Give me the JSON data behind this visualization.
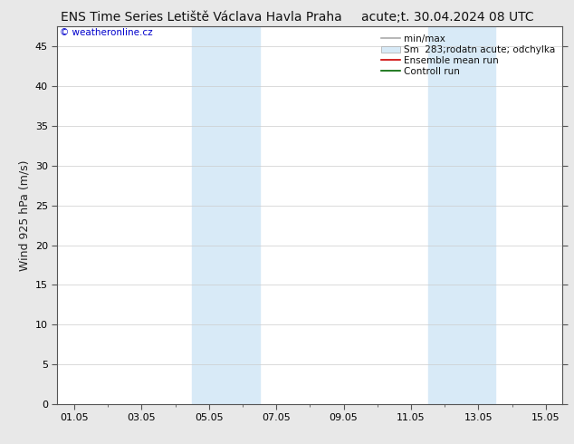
{
  "title_left": "ENS Time Series Letiště Václava Havla Praha",
  "title_right": "acute;t. 30.04.2024 08 UTC",
  "ylabel": "Wind 925 hPa (m/s)",
  "watermark": "© weatheronline.cz",
  "watermark_color": "#0000cc",
  "xtick_labels": [
    "01.05",
    "03.05",
    "05.05",
    "07.05",
    "09.05",
    "11.05",
    "13.05",
    "15.05"
  ],
  "xtick_positions": [
    0,
    2,
    4,
    6,
    8,
    10,
    12,
    14
  ],
  "ylim": [
    0,
    47.5
  ],
  "ytick_positions": [
    0,
    5,
    10,
    15,
    20,
    25,
    30,
    35,
    40,
    45
  ],
  "ytick_labels": [
    "0",
    "5",
    "10",
    "15",
    "20",
    "25",
    "30",
    "35",
    "40",
    "45"
  ],
  "xlim": [
    -0.5,
    14.5
  ],
  "shaded_regions": [
    {
      "x_start": 3.5,
      "x_end": 5.5,
      "color": "#d8eaf7"
    },
    {
      "x_start": 10.5,
      "x_end": 12.5,
      "color": "#d8eaf7"
    }
  ],
  "legend_entries": [
    {
      "label": "min/max",
      "color": "#aaaaaa",
      "lw": 1.2
    },
    {
      "label": "Sm  283;rodatn acute; odchylka",
      "color": "#d8eaf7",
      "border": "#aaaaaa"
    },
    {
      "label": "Ensemble mean run",
      "color": "#cc0000",
      "lw": 1.2
    },
    {
      "label": "Controll run",
      "color": "#006600",
      "lw": 1.2
    }
  ],
  "bg_color": "#e8e8e8",
  "plot_bg_color": "#ffffff",
  "grid_color": "#cccccc",
  "title_fontsize": 10,
  "tick_fontsize": 8,
  "ylabel_fontsize": 9,
  "legend_fontsize": 7.5
}
